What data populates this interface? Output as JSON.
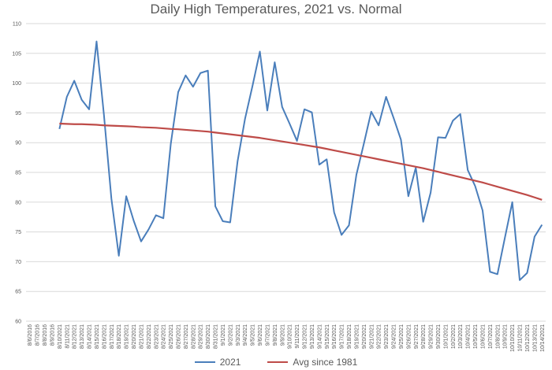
{
  "chart_data": {
    "type": "line",
    "title": "Daily High Temperatures, 2021 vs. Normal",
    "xlabel": "",
    "ylabel": "",
    "ylim": [
      60,
      110
    ],
    "yticks": [
      60,
      65,
      70,
      75,
      80,
      85,
      90,
      95,
      100,
      105,
      110
    ],
    "grid": true,
    "legend_position": "bottom",
    "categories": [
      "8/6/2016",
      "8/7/2016",
      "8/8/2016",
      "8/9/2016",
      "8/10/2021",
      "8/11/2021",
      "8/12/2021",
      "8/13/2021",
      "8/14/2021",
      "8/15/2021",
      "8/16/2021",
      "8/17/2021",
      "8/18/2021",
      "8/19/2021",
      "8/20/2021",
      "8/21/2021",
      "8/22/2021",
      "8/23/2021",
      "8/24/2021",
      "8/25/2021",
      "8/26/2021",
      "8/27/2021",
      "8/28/2021",
      "8/29/2021",
      "8/30/2021",
      "8/31/2021",
      "9/1/2021",
      "9/2/2021",
      "9/3/2021",
      "9/4/2021",
      "9/5/2021",
      "9/6/2021",
      "9/7/2021",
      "9/8/2021",
      "9/9/2021",
      "9/10/2021",
      "9/11/2021",
      "9/12/2021",
      "9/13/2021",
      "9/14/2021",
      "9/15/2021",
      "9/16/2021",
      "9/17/2021",
      "9/18/2021",
      "9/19/2021",
      "9/20/2021",
      "9/21/2021",
      "9/22/2021",
      "9/23/2021",
      "9/24/2021",
      "9/25/2021",
      "9/26/2021",
      "9/27/2021",
      "9/28/2021",
      "9/29/2021",
      "9/30/2021",
      "10/1/2021",
      "10/2/2021",
      "10/3/2021",
      "10/4/2021",
      "10/5/2021",
      "10/6/2021",
      "10/7/2021",
      "10/8/2021",
      "10/9/2021",
      "10/10/2021",
      "10/11/2021",
      "10/12/2021",
      "10/13/2021",
      "10/14/2021"
    ],
    "series": [
      {
        "name": "2021",
        "color": "#4a7ebb",
        "values": [
          null,
          null,
          null,
          null,
          92.3,
          97.7,
          100.4,
          97.2,
          95.6,
          107.0,
          94.6,
          80.6,
          71.0,
          81.0,
          76.9,
          73.4,
          75.4,
          77.8,
          77.3,
          89.8,
          98.5,
          101.3,
          99.4,
          101.7,
          102.1,
          79.3,
          76.8,
          76.6,
          86.9,
          94.0,
          99.5,
          105.3,
          95.4,
          103.5,
          96.0,
          93.2,
          90.3,
          95.6,
          95.1,
          86.3,
          87.2,
          78.3,
          74.5,
          76.1,
          84.6,
          89.8,
          95.2,
          92.9,
          97.7,
          94.2,
          90.5,
          81.0,
          85.8,
          76.7,
          81.6,
          90.9,
          90.8,
          93.7,
          94.8,
          85.4,
          82.7,
          78.6,
          68.3,
          67.9,
          74.0,
          80.0,
          66.9,
          68.1,
          74.2,
          76.2
        ]
      },
      {
        "name": "Avg since 1981",
        "color": "#be4b48",
        "values": [
          null,
          null,
          null,
          null,
          93.2,
          93.15,
          93.1,
          93.1,
          93.05,
          93.0,
          92.9,
          92.85,
          92.8,
          92.75,
          92.7,
          92.6,
          92.55,
          92.5,
          92.4,
          92.3,
          92.25,
          92.15,
          92.05,
          91.95,
          91.85,
          91.7,
          91.55,
          91.4,
          91.25,
          91.1,
          90.95,
          90.8,
          90.6,
          90.4,
          90.2,
          90.0,
          89.8,
          89.6,
          89.4,
          89.2,
          88.95,
          88.7,
          88.45,
          88.2,
          87.95,
          87.7,
          87.45,
          87.2,
          86.95,
          86.7,
          86.45,
          86.2,
          85.95,
          85.7,
          85.4,
          85.1,
          84.8,
          84.5,
          84.2,
          83.9,
          83.6,
          83.3,
          82.95,
          82.6,
          82.25,
          81.9,
          81.55,
          81.2,
          80.8,
          80.4
        ]
      }
    ]
  }
}
